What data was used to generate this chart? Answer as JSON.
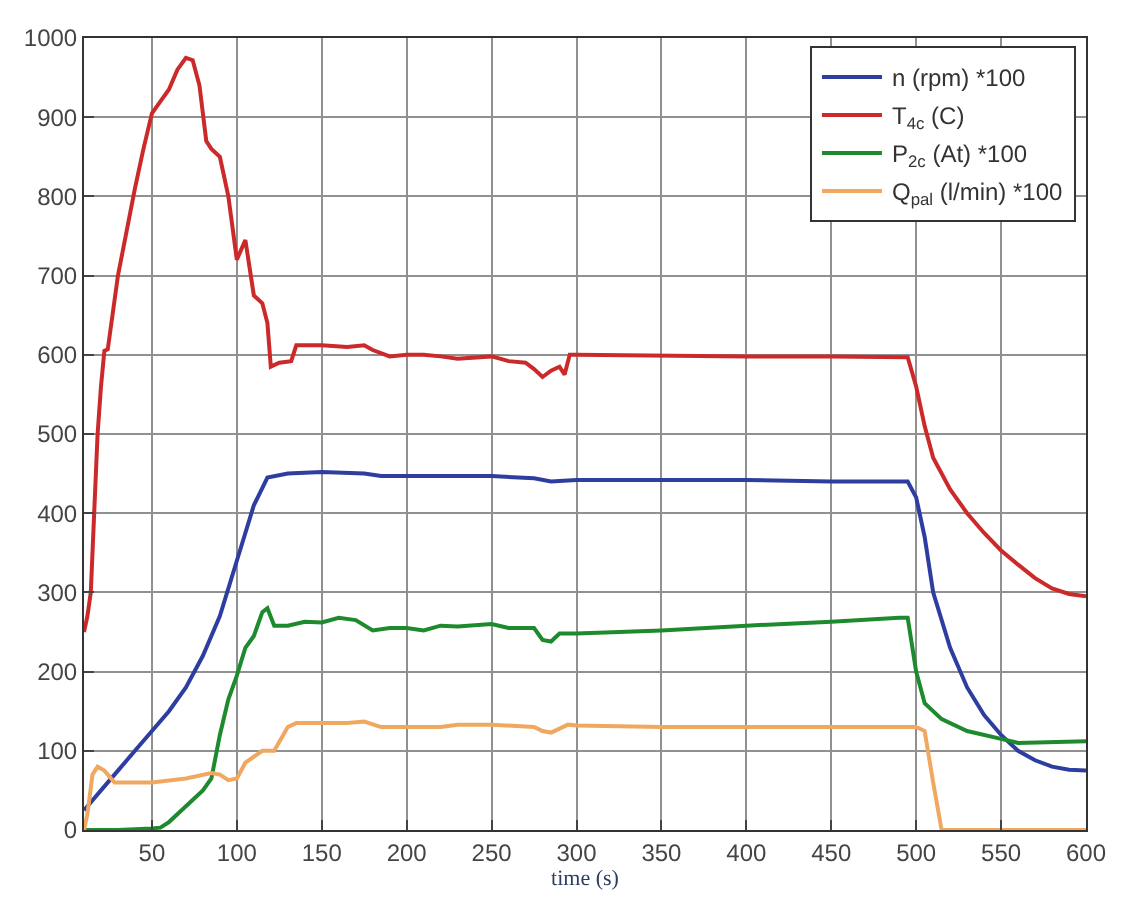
{
  "chart_data": {
    "type": "line",
    "xlabel": "time (s)",
    "xlim": [
      10,
      600
    ],
    "ylim": [
      0,
      1000
    ],
    "xticks": [
      50,
      100,
      150,
      200,
      250,
      300,
      350,
      400,
      450,
      500,
      550,
      600
    ],
    "yticks": [
      0,
      100,
      200,
      300,
      400,
      500,
      600,
      700,
      800,
      900,
      1000
    ],
    "grid": true,
    "legend": "top right",
    "marker": "none",
    "line_style": "solid",
    "series": [
      {
        "name": "n (rpm) *100",
        "color": "#2e3ea0",
        "x": [
          10,
          20,
          30,
          40,
          50,
          60,
          70,
          80,
          90,
          100,
          110,
          118,
          130,
          150,
          175,
          185,
          200,
          250,
          275,
          285,
          300,
          350,
          400,
          450,
          490,
          495,
          500,
          505,
          510,
          520,
          530,
          540,
          550,
          560,
          570,
          580,
          590,
          600
        ],
        "values": [
          25,
          50,
          75,
          100,
          125,
          150,
          180,
          220,
          270,
          340,
          410,
          445,
          450,
          452,
          450,
          447,
          447,
          447,
          444,
          440,
          442,
          442,
          442,
          440,
          440,
          440,
          420,
          370,
          300,
          230,
          180,
          145,
          120,
          100,
          88,
          80,
          76,
          75
        ]
      },
      {
        "name": "T$_{4c}$ (C)",
        "color": "#cc2a2a",
        "x": [
          10,
          12,
          14,
          16,
          18,
          20,
          22,
          24,
          30,
          40,
          45,
          50,
          55,
          60,
          65,
          70,
          74,
          78,
          82,
          85,
          90,
          95,
          100,
          105,
          110,
          115,
          118,
          120,
          125,
          132,
          135,
          150,
          165,
          175,
          180,
          190,
          200,
          210,
          220,
          230,
          250,
          260,
          270,
          275,
          280,
          285,
          290,
          293,
          296,
          300,
          400,
          450,
          495,
          500,
          505,
          510,
          520,
          530,
          540,
          550,
          560,
          570,
          580,
          590,
          600
        ],
        "values": [
          250,
          270,
          300,
          400,
          500,
          560,
          605,
          607,
          700,
          810,
          860,
          905,
          920,
          935,
          960,
          975,
          972,
          940,
          870,
          860,
          850,
          800,
          720,
          745,
          675,
          665,
          640,
          585,
          590,
          592,
          612,
          612,
          610,
          612,
          606,
          598,
          600,
          600,
          598,
          595,
          598,
          592,
          590,
          582,
          572,
          580,
          585,
          575,
          600,
          600,
          598,
          598,
          597,
          560,
          510,
          470,
          430,
          400,
          375,
          353,
          335,
          318,
          305,
          298,
          295
        ]
      },
      {
        "name": "P$_{2c}$ (At) *100",
        "color": "#1e8a2e",
        "x": [
          10,
          30,
          50,
          55,
          60,
          70,
          80,
          85,
          90,
          95,
          100,
          105,
          110,
          115,
          118,
          122,
          130,
          140,
          150,
          160,
          170,
          180,
          190,
          200,
          210,
          220,
          230,
          250,
          260,
          275,
          280,
          285,
          290,
          300,
          350,
          400,
          450,
          490,
          495,
          500,
          505,
          515,
          530,
          550,
          560,
          600
        ],
        "values": [
          0,
          0,
          2,
          3,
          10,
          30,
          50,
          65,
          120,
          165,
          195,
          230,
          245,
          275,
          280,
          258,
          258,
          263,
          262,
          268,
          265,
          252,
          255,
          255,
          252,
          258,
          257,
          260,
          255,
          255,
          240,
          238,
          248,
          248,
          252,
          258,
          263,
          268,
          268,
          200,
          160,
          140,
          125,
          115,
          110,
          112
        ]
      },
      {
        "name": "Q$_{pal}$ (l/min) *100",
        "color": "#f0a860",
        "x": [
          10,
          12,
          15,
          18,
          22,
          28,
          50,
          70,
          85,
          90,
          95,
          100,
          105,
          115,
          122,
          130,
          135,
          150,
          165,
          175,
          185,
          200,
          220,
          230,
          250,
          275,
          280,
          285,
          290,
          295,
          300,
          350,
          400,
          450,
          500,
          505,
          510,
          515,
          600
        ],
        "values": [
          0,
          20,
          70,
          80,
          75,
          60,
          60,
          65,
          72,
          70,
          63,
          65,
          85,
          100,
          100,
          130,
          135,
          135,
          135,
          137,
          130,
          130,
          130,
          133,
          133,
          130,
          125,
          123,
          128,
          133,
          132,
          130,
          130,
          130,
          130,
          125,
          60,
          0,
          0
        ]
      }
    ]
  }
}
